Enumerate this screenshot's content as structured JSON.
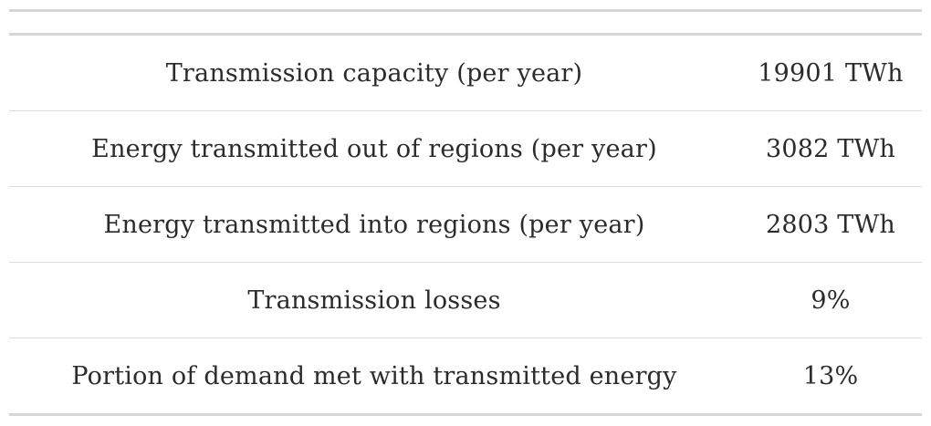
{
  "table": {
    "rows": [
      {
        "label": "Transmission capacity (per year)",
        "value": "19901 TWh"
      },
      {
        "label": "Energy transmitted out of regions (per year)",
        "value": "3082 TWh"
      },
      {
        "label": "Energy transmitted into regions (per year)",
        "value": "2803 TWh"
      },
      {
        "label": "Transmission losses",
        "value": "9%"
      },
      {
        "label": "Portion of demand met with transmitted energy",
        "value": "13%"
      }
    ]
  }
}
